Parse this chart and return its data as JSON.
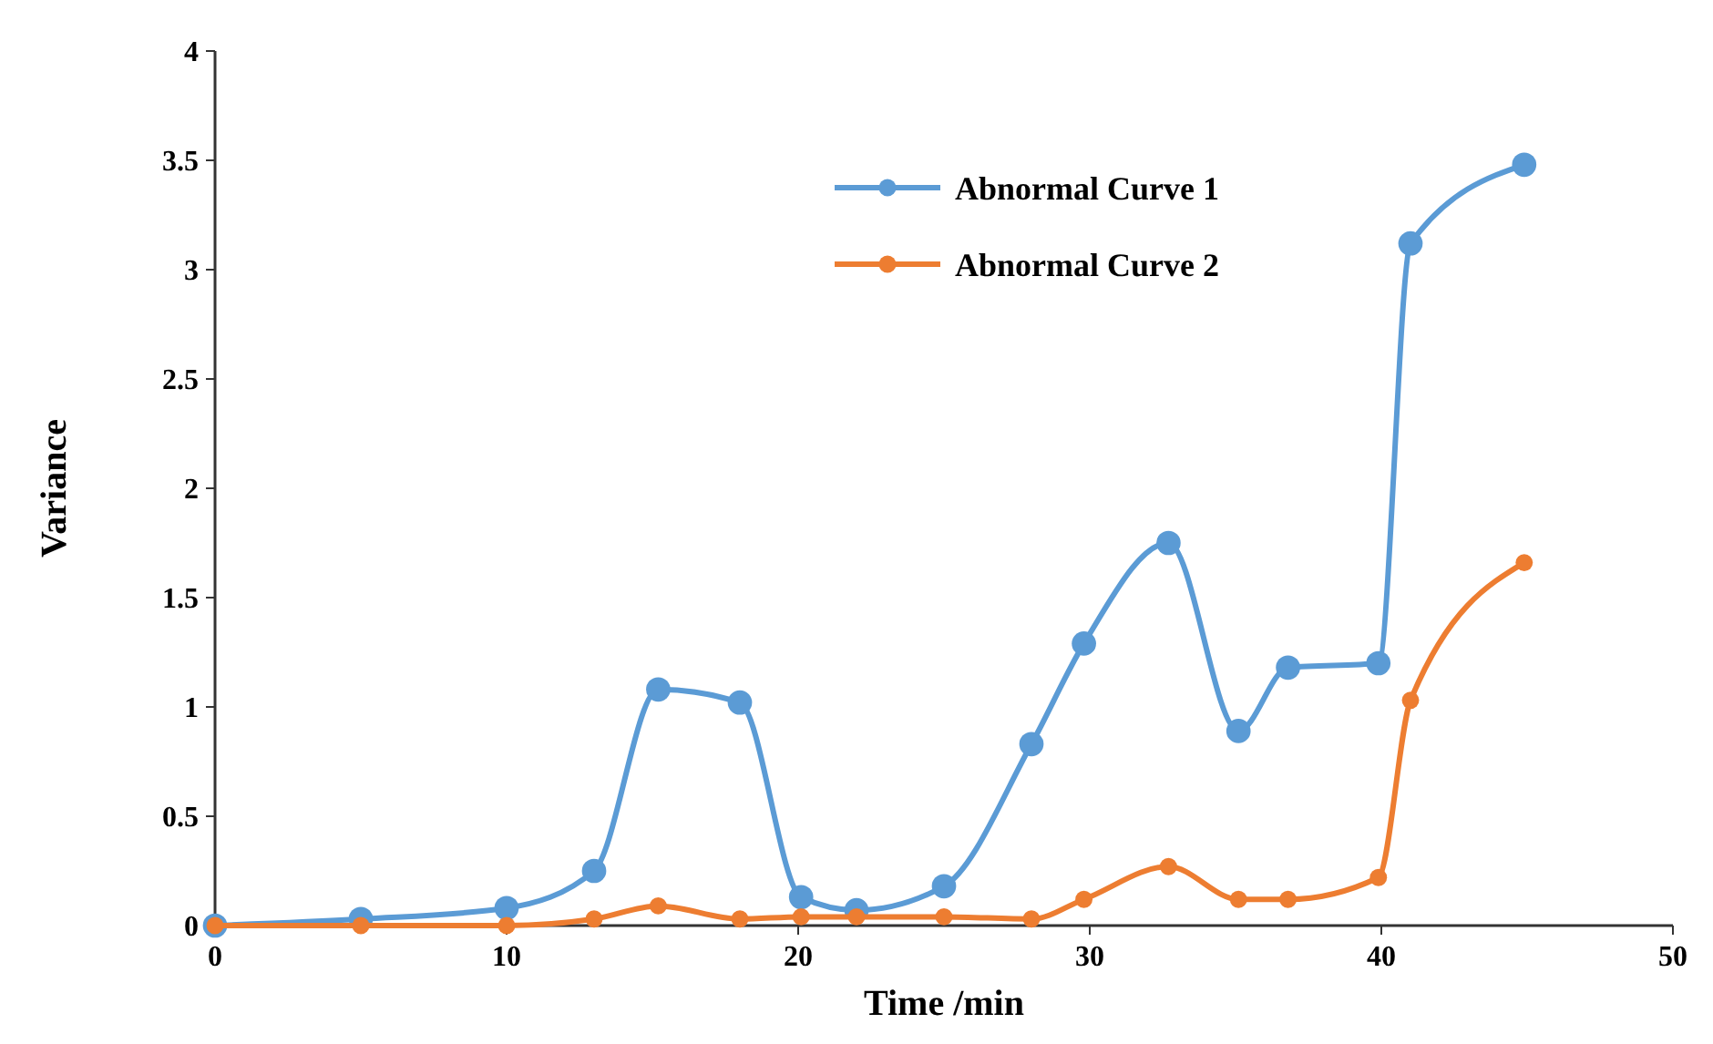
{
  "chart_data": {
    "type": "line",
    "xlabel": "Time /min",
    "ylabel": "Variance",
    "xlim": [
      0,
      50
    ],
    "xticks": [
      0,
      10,
      20,
      30,
      40,
      50
    ],
    "ylim": [
      0,
      4
    ],
    "yticks": [
      0,
      0.5,
      1,
      1.5,
      2,
      2.5,
      3,
      3.5,
      4
    ],
    "x": [
      0,
      5,
      10,
      13,
      15.2,
      18,
      20.1,
      22,
      25,
      28,
      29.8,
      32.7,
      35.1,
      36.8,
      39.9,
      41,
      44.9
    ],
    "series": [
      {
        "name": "Abnormal Curve 1",
        "color": "#5b9bd5",
        "values": [
          0,
          0.03,
          0.08,
          0.25,
          1.08,
          1.02,
          0.13,
          0.07,
          0.18,
          0.83,
          1.29,
          1.75,
          0.89,
          1.18,
          1.2,
          3.12,
          3.48
        ]
      },
      {
        "name": "Abnormal Curve 2",
        "color": "#ed7d31",
        "values": [
          0,
          0,
          0,
          0.03,
          0.09,
          0.03,
          0.04,
          0.04,
          0.04,
          0.03,
          0.12,
          0.27,
          0.12,
          0.12,
          0.22,
          1.03,
          1.66
        ]
      }
    ],
    "marker": "circle",
    "line_style": "solid",
    "grid": false,
    "legend": "top right"
  }
}
